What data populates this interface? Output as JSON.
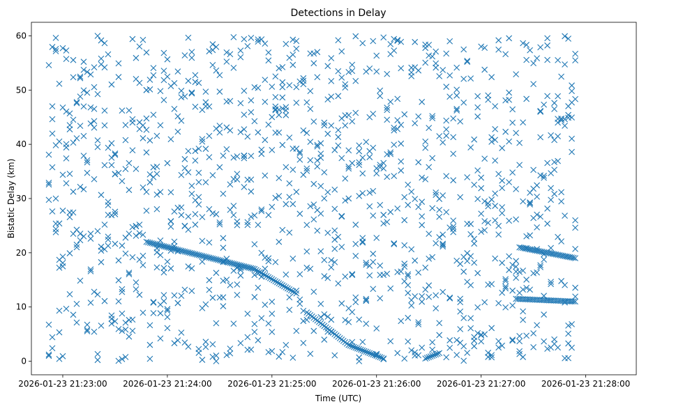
{
  "chart_data": {
    "type": "scatter",
    "title": "Detections in Delay",
    "xlabel": "Time (UTC)",
    "ylabel": "Bistatic Delay (km)",
    "xlim_seconds_after_start": [
      -10,
      337
    ],
    "ylim": [
      -2.5,
      62.5
    ],
    "x_ticks": [
      "2026-01-23 21:23:00",
      "2026-01-23 21:24:00",
      "2026-01-23 21:25:00",
      "2026-01-23 21:26:00",
      "2026-01-23 21:27:00",
      "2026-01-23 21:28:00"
    ],
    "y_ticks": [
      "0",
      "10",
      "20",
      "30",
      "40",
      "50",
      "60"
    ],
    "grid": false,
    "marker": "x",
    "color": "#1f77b4",
    "series": [
      {
        "name": "",
        "t_start": "2026-01-23 21:22:52",
        "t_end": "2026-01-23 21:27:54",
        "time_step_seconds": 2,
        "noise_points_per_frame": 8,
        "delay_range_km": [
          0,
          60
        ],
        "tracks": [
          {
            "t": [
              "21:23:48",
              "21:24:50",
              "21:25:14"
            ],
            "delay_km": [
              22,
              17,
              12.5
            ]
          },
          {
            "t": [
              "21:25:20",
              "21:25:44",
              "21:26:04"
            ],
            "delay_km": [
              9,
              3,
              0.5
            ]
          },
          {
            "t": [
              "21:26:28",
              "21:26:36"
            ],
            "delay_km": [
              0.5,
              1.5
            ]
          },
          {
            "t": [
              "21:27:20",
              "21:27:54"
            ],
            "delay_km": [
              11.5,
              11
            ]
          },
          {
            "t": [
              "21:27:22",
              "21:27:54"
            ],
            "delay_km": [
              21,
              19
            ]
          }
        ]
      }
    ]
  }
}
